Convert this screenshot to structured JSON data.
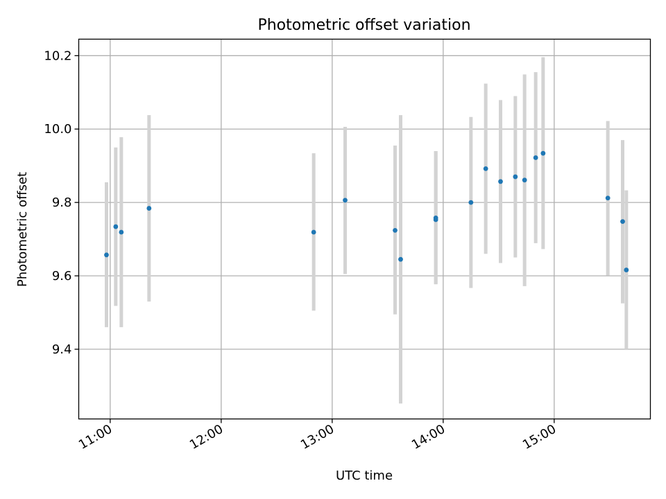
{
  "chart_data": {
    "type": "scatter",
    "title": "Photometric offset variation",
    "xlabel": "UTC time",
    "ylabel": "Photometric offset",
    "xlim": [
      "10:43",
      "15:52"
    ],
    "ylim": [
      9.21,
      10.245
    ],
    "grid": true,
    "x_ticks": [
      "11:00",
      "12:00",
      "13:00",
      "14:00",
      "15:00"
    ],
    "y_ticks": [
      9.4,
      9.6,
      9.8,
      10.0,
      10.2
    ],
    "y_tick_labels": [
      "9.4",
      "9.6",
      "9.8",
      "10.0",
      "10.2"
    ],
    "marker_color": "#1f77b4",
    "errorbar_color": "#d3d3d3",
    "series": [
      {
        "points": [
          {
            "x": "10:58",
            "y": 9.657,
            "lo": 9.46,
            "hi": 9.855
          },
          {
            "x": "11:03",
            "y": 9.734,
            "lo": 9.518,
            "hi": 9.95
          },
          {
            "x": "11:06",
            "y": 9.719,
            "lo": 9.46,
            "hi": 9.978
          },
          {
            "x": "11:21",
            "y": 9.784,
            "lo": 9.53,
            "hi": 10.038
          },
          {
            "x": "12:50",
            "y": 9.719,
            "lo": 9.505,
            "hi": 9.934
          },
          {
            "x": "13:07",
            "y": 9.806,
            "lo": 9.605,
            "hi": 10.006
          },
          {
            "x": "13:34",
            "y": 9.724,
            "lo": 9.495,
            "hi": 9.955
          },
          {
            "x": "13:37",
            "y": 9.645,
            "lo": 9.252,
            "hi": 10.038
          },
          {
            "x": "13:56",
            "y": 9.758,
            "lo": 9.577,
            "hi": 9.94
          },
          {
            "x": "13:56",
            "y": 9.753,
            "lo": 9.577,
            "hi": 9.94
          },
          {
            "x": "14:15",
            "y": 9.8,
            "lo": 9.567,
            "hi": 10.033
          },
          {
            "x": "14:23",
            "y": 9.892,
            "lo": 9.66,
            "hi": 10.124
          },
          {
            "x": "14:31",
            "y": 9.857,
            "lo": 9.635,
            "hi": 10.079
          },
          {
            "x": "14:39",
            "y": 9.87,
            "lo": 9.65,
            "hi": 10.09
          },
          {
            "x": "14:44",
            "y": 9.861,
            "lo": 9.572,
            "hi": 10.149
          },
          {
            "x": "14:50",
            "y": 9.922,
            "lo": 9.689,
            "hi": 10.155
          },
          {
            "x": "14:54",
            "y": 9.934,
            "lo": 9.673,
            "hi": 10.196
          },
          {
            "x": "15:29",
            "y": 9.812,
            "lo": 9.601,
            "hi": 10.022
          },
          {
            "x": "15:37",
            "y": 9.748,
            "lo": 9.525,
            "hi": 9.97
          },
          {
            "x": "15:39",
            "y": 9.616,
            "lo": 9.4,
            "hi": 9.833
          }
        ]
      }
    ]
  }
}
